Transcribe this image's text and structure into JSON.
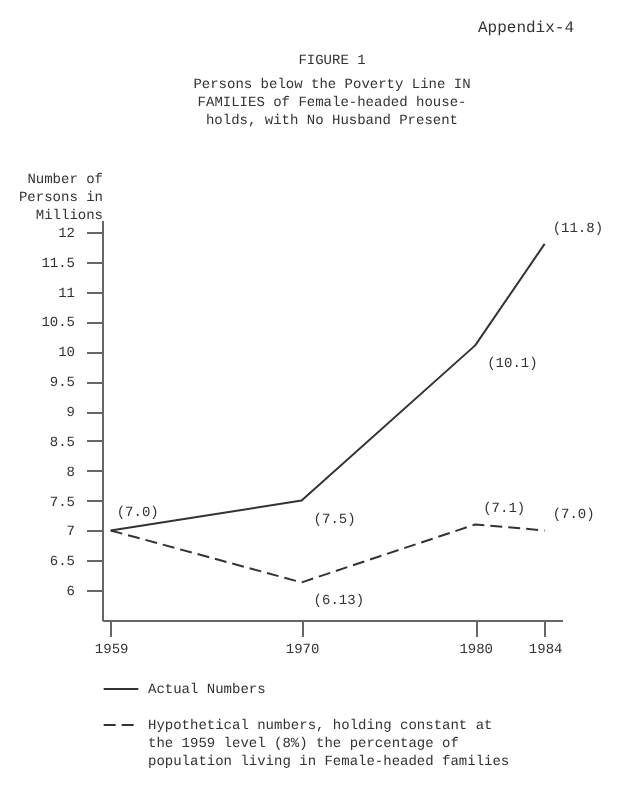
{
  "chart_data": {
    "type": "line",
    "title": "FIGURE 1",
    "subtitle": "Persons below the Poverty Line IN FAMILIES of Female-headed house-holds, with No Husband Present",
    "annotations": [
      "Appendix-4"
    ],
    "ylabel": "Number of Persons in Millions",
    "x": [
      1959,
      1970,
      1980,
      1984
    ],
    "series": [
      {
        "name": "Actual Numbers",
        "color": "#333333",
        "line_style": "solid",
        "values": [
          7.0,
          7.5,
          10.1,
          11.8
        ],
        "value_labels": [
          "(7.0)",
          "(7.5)",
          "(10.1)",
          "(11.8)"
        ]
      },
      {
        "name": "Hypothetical numbers, holding constant at the 1959 level (8%) the percentage of population living in Female-headed families",
        "color": "#333333",
        "line_style": "dashed",
        "values": [
          7.0,
          6.13,
          7.1,
          7.0
        ],
        "value_labels": [
          null,
          "(6.13)",
          "(7.1)",
          "(7.0)"
        ]
      }
    ],
    "xlim": [
      1958.5,
      1985
    ],
    "xticks": [
      1959,
      1970,
      1980,
      1984
    ],
    "ylim": [
      5.5,
      12.2
    ],
    "yticks": [
      6,
      6.5,
      7,
      7.5,
      8,
      8.5,
      9,
      9.5,
      10,
      10.5,
      11,
      11.5,
      12
    ],
    "grid": false,
    "legend": "bottom",
    "marker": "none"
  }
}
